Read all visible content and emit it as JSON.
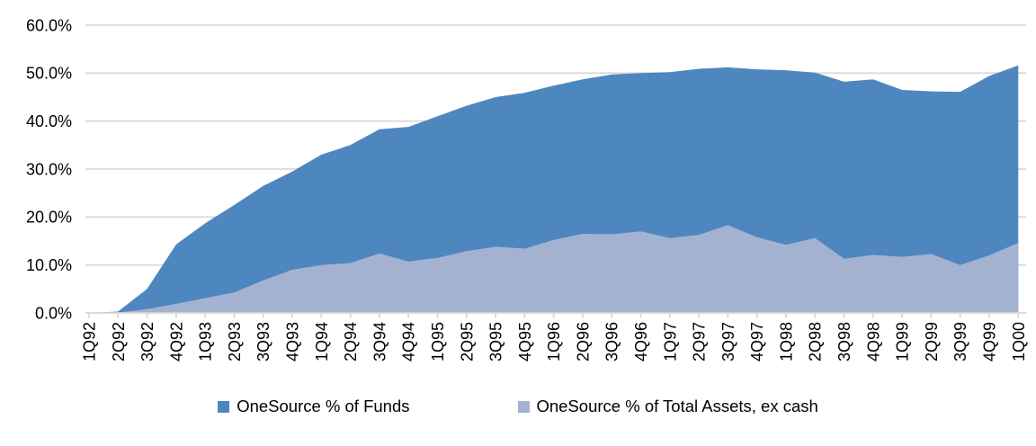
{
  "chart_data": {
    "type": "area",
    "mode": "overlapping",
    "title": "",
    "xlabel": "",
    "ylabel": "",
    "categories": [
      "1Q92",
      "2Q92",
      "3Q92",
      "4Q92",
      "1Q93",
      "2Q93",
      "3Q93",
      "4Q93",
      "1Q94",
      "2Q94",
      "3Q94",
      "4Q94",
      "1Q95",
      "2Q95",
      "3Q95",
      "4Q95",
      "1Q96",
      "2Q96",
      "3Q96",
      "4Q96",
      "1Q97",
      "2Q97",
      "3Q97",
      "4Q97",
      "1Q98",
      "2Q98",
      "3Q98",
      "4Q98",
      "1Q99",
      "2Q99",
      "3Q99",
      "4Q99",
      "1Q00"
    ],
    "series": [
      {
        "name": "OneSource % of Funds",
        "color": "#4E87C0",
        "values": [
          0.0,
          0.3,
          5.0,
          14.3,
          18.7,
          22.5,
          26.5,
          29.5,
          33.0,
          35.0,
          38.3,
          38.8,
          41.0,
          43.2,
          45.0,
          45.9,
          47.4,
          48.7,
          49.7,
          50.0,
          50.2,
          50.9,
          51.2,
          50.8,
          50.6,
          50.1,
          48.2,
          48.7,
          46.5,
          46.2,
          46.1,
          49.4,
          51.6
        ]
      },
      {
        "name": "OneSource % of Total Assets, ex cash",
        "color": "#A4B2D1",
        "values": [
          0.0,
          0.1,
          0.8,
          1.9,
          3.1,
          4.3,
          6.8,
          9.0,
          10.0,
          10.4,
          12.4,
          10.7,
          11.5,
          12.9,
          13.8,
          13.4,
          15.2,
          16.5,
          16.4,
          17.0,
          15.6,
          16.3,
          18.3,
          15.8,
          14.2,
          15.6,
          11.3,
          12.1,
          11.7,
          12.3,
          10.0,
          12.0,
          14.6
        ]
      }
    ],
    "y_axis": {
      "min": 0,
      "max": 60,
      "step": 10,
      "tick_labels": [
        "0.0%",
        "10.0%",
        "20.0%",
        "30.0%",
        "40.0%",
        "50.0%",
        "60.0%"
      ]
    },
    "grid": "horizontal",
    "grid_color": "#D9D9D9",
    "axis_color": "#D6D6D6",
    "text_color": "#000000",
    "legend_position": "bottom"
  }
}
